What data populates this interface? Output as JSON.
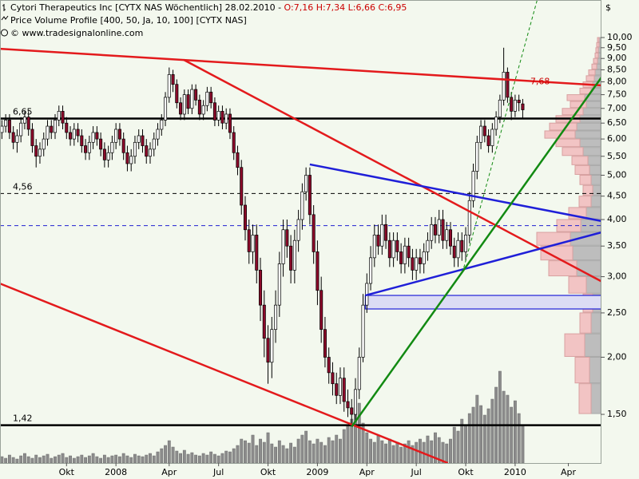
{
  "chart_data": {
    "type": "candlestick",
    "title": "Cytori Therapeutics Inc [CYTX NAS  Wöchentlich] 28.02.2010 - ",
    "subtitle": "O:7,16 H:7,34 L:6,66 C:6,95",
    "indicator": "Price Volume Profile [400, 50, Ja, 10, 100] [CYTX NAS]",
    "copyright": "© www.tradesignalonline.com",
    "currency": "$",
    "log_scale": true,
    "ylim": [
      1.174,
      12.08
    ],
    "yticks": [
      {
        "value": 1.5,
        "label": "1,50"
      },
      {
        "value": 2,
        "label": "2,00"
      },
      {
        "value": 2.5,
        "label": "2,50"
      },
      {
        "value": 3,
        "label": "3,00"
      },
      {
        "value": 3.5,
        "label": "3,50"
      },
      {
        "value": 4,
        "label": "4,00"
      },
      {
        "value": 4.5,
        "label": "4,50"
      },
      {
        "value": 5,
        "label": "5,00"
      },
      {
        "value": 5.5,
        "label": "5,50"
      },
      {
        "value": 6,
        "label": "6,00"
      },
      {
        "value": 6.5,
        "label": "6,50"
      },
      {
        "value": 7,
        "label": "7,00"
      },
      {
        "value": 7.5,
        "label": "7,50"
      },
      {
        "value": 8,
        "label": "8,00"
      },
      {
        "value": 8.5,
        "label": "8,50"
      },
      {
        "value": 9,
        "label": "9,00"
      },
      {
        "value": 9.5,
        "label": "9,50"
      },
      {
        "value": 10,
        "label": "10,00"
      }
    ],
    "categories": [
      null,
      null,
      null,
      null,
      null,
      null,
      null,
      null,
      null,
      null,
      null,
      null,
      null,
      null,
      null,
      null,
      null,
      "Okt",
      null,
      null,
      null,
      null,
      null,
      null,
      null,
      null,
      null,
      null,
      null,
      null,
      "2008",
      null,
      null,
      null,
      null,
      null,
      null,
      null,
      null,
      null,
      null,
      null,
      null,
      null,
      "Apr",
      null,
      null,
      null,
      null,
      null,
      null,
      null,
      null,
      null,
      null,
      null,
      null,
      "Jul",
      null,
      null,
      null,
      null,
      null,
      null,
      null,
      null,
      null,
      null,
      null,
      null,
      "Okt",
      null,
      null,
      null,
      null,
      null,
      null,
      null,
      null,
      null,
      null,
      null,
      null,
      "2009",
      null,
      null,
      null,
      null,
      null,
      null,
      null,
      null,
      null,
      null,
      null,
      null,
      "Apr",
      null,
      null,
      null,
      null,
      null,
      null,
      null,
      null,
      null,
      null,
      null,
      null,
      "Jul",
      null,
      null,
      null,
      null,
      null,
      null,
      null,
      null,
      null,
      null,
      null,
      null,
      "Okt",
      null,
      null,
      null,
      null,
      null,
      null,
      null,
      null,
      null,
      null,
      null,
      null,
      "2010",
      null,
      null,
      null,
      null,
      null,
      null,
      null,
      null,
      null,
      null,
      null,
      null,
      null,
      "Apr",
      null,
      null,
      null,
      null,
      null,
      null,
      null,
      null
    ],
    "open": [
      6.2,
      6.4,
      6.6,
      6.2,
      5.9,
      6.1,
      6.5,
      6.7,
      6.3,
      5.8,
      5.5,
      5.7,
      6.0,
      6.4,
      6.2,
      6.6,
      6.9,
      6.5,
      6.2,
      6.0,
      6.3,
      6.1,
      5.8,
      5.6,
      5.9,
      6.2,
      6.0,
      5.7,
      5.4,
      5.6,
      5.9,
      6.3,
      6.0,
      5.6,
      5.3,
      5.5,
      5.9,
      6.1,
      5.8,
      5.5,
      5.7,
      6.0,
      6.3,
      6.6,
      7.4,
      8.3,
      7.9,
      7.2,
      6.8,
      7.5,
      7.0,
      7.7,
      7.3,
      6.8,
      7.1,
      7.6,
      7.2,
      6.6,
      6.9,
      6.5,
      6.8,
      6.2,
      5.6,
      5.2,
      4.3,
      3.8,
      3.4,
      3.7,
      3.1,
      2.6,
      2.2,
      1.95,
      2.3,
      2.6,
      3.2,
      3.8,
      3.5,
      3.1,
      3.6,
      4.0,
      4.6,
      5.0,
      4.1,
      3.4,
      2.8,
      2.3,
      2.0,
      1.85,
      1.75,
      1.65,
      1.8,
      1.6,
      1.55,
      1.5,
      1.7,
      2.0,
      2.6,
      2.9,
      3.3,
      3.7,
      3.5,
      3.9,
      3.6,
      3.3,
      3.6,
      3.4,
      3.2,
      3.5,
      3.3,
      3.1,
      3.3,
      3.2,
      3.4,
      3.6,
      3.9,
      3.7,
      4.0,
      3.6,
      3.8,
      3.5,
      3.3,
      3.6,
      3.4,
      3.7,
      4.4,
      5.1,
      5.9,
      6.4,
      6.1,
      5.8,
      6.3,
      6.7,
      7.3,
      8.4,
      7.4,
      6.9,
      7.3,
      7.16,
      null,
      null,
      null,
      null,
      null,
      null,
      null,
      null,
      null,
      null,
      null,
      null,
      null,
      null,
      null,
      null,
      null,
      null,
      null,
      null
    ],
    "high": [
      6.6,
      6.8,
      6.8,
      6.4,
      6.3,
      6.7,
      6.9,
      6.9,
      6.5,
      6.0,
      5.9,
      6.2,
      6.6,
      6.6,
      6.8,
      7.1,
      7.1,
      6.7,
      6.4,
      6.5,
      6.5,
      6.3,
      6.0,
      6.1,
      6.4,
      6.4,
      6.2,
      5.9,
      5.8,
      6.1,
      6.5,
      6.5,
      6.2,
      5.8,
      5.7,
      6.1,
      6.3,
      6.3,
      6.0,
      5.9,
      6.2,
      6.5,
      6.8,
      7.6,
      8.6,
      8.5,
      8.1,
      7.4,
      7.7,
      7.7,
      7.9,
      7.9,
      7.5,
      7.3,
      7.8,
      7.8,
      7.4,
      7.1,
      7.1,
      7.0,
      7.0,
      6.4,
      5.8,
      5.4,
      4.5,
      4.0,
      3.9,
      3.9,
      3.3,
      2.8,
      2.35,
      2.45,
      2.8,
      3.4,
      4.0,
      4.0,
      3.7,
      3.8,
      4.2,
      4.8,
      5.2,
      5.2,
      4.3,
      3.6,
      3.0,
      2.45,
      2.1,
      1.95,
      1.85,
      1.9,
      1.9,
      1.7,
      1.62,
      1.8,
      2.1,
      2.75,
      3.05,
      3.5,
      3.9,
      3.9,
      4.1,
      4.1,
      3.75,
      3.75,
      3.75,
      3.55,
      3.65,
      3.65,
      3.45,
      3.45,
      3.45,
      3.55,
      3.75,
      4.05,
      4.05,
      4.2,
      4.2,
      3.95,
      3.95,
      3.65,
      3.75,
      3.75,
      3.85,
      4.6,
      5.3,
      6.1,
      6.6,
      6.6,
      6.3,
      6.5,
      6.9,
      7.5,
      9.5,
      8.6,
      7.6,
      7.5,
      7.5,
      7.34,
      null,
      null,
      null,
      null,
      null,
      null,
      null,
      null,
      null,
      null,
      null,
      null,
      null,
      null,
      null,
      null,
      null,
      null,
      null,
      null
    ],
    "low": [
      6.0,
      6.2,
      6.0,
      5.7,
      5.6,
      5.9,
      6.3,
      6.1,
      5.6,
      5.2,
      5.3,
      5.5,
      5.8,
      6.0,
      6.0,
      6.4,
      6.3,
      6.0,
      5.8,
      5.8,
      5.9,
      5.6,
      5.4,
      5.4,
      5.7,
      5.8,
      5.5,
      5.2,
      5.2,
      5.4,
      5.7,
      5.8,
      5.4,
      5.1,
      5.1,
      5.3,
      5.7,
      5.6,
      5.3,
      5.3,
      5.5,
      5.8,
      6.1,
      6.4,
      7.2,
      7.6,
      7.0,
      6.6,
      6.6,
      6.8,
      6.8,
      7.1,
      6.6,
      6.6,
      6.9,
      7.0,
      6.4,
      6.4,
      6.3,
      6.3,
      6.0,
      5.4,
      5.0,
      4.1,
      3.6,
      3.2,
      3.2,
      2.9,
      2.4,
      2.0,
      1.75,
      1.8,
      2.15,
      2.45,
      3.0,
      3.3,
      2.9,
      2.9,
      3.4,
      3.8,
      4.4,
      3.9,
      3.2,
      2.6,
      2.15,
      1.9,
      1.75,
      1.65,
      1.58,
      1.58,
      1.52,
      1.48,
      1.42,
      1.45,
      1.62,
      1.95,
      2.5,
      2.8,
      3.15,
      3.35,
      3.35,
      3.45,
      3.15,
      3.15,
      3.25,
      3.05,
      3.05,
      3.15,
      2.95,
      2.95,
      3.05,
      3.05,
      3.25,
      3.45,
      3.55,
      3.55,
      3.45,
      3.45,
      3.35,
      3.15,
      3.15,
      3.25,
      3.25,
      3.55,
      4.25,
      4.9,
      5.7,
      5.9,
      5.6,
      5.6,
      6.1,
      6.5,
      7.1,
      7.2,
      6.6,
      6.7,
      6.9,
      6.66,
      null,
      null,
      null,
      null,
      null,
      null,
      null,
      null,
      null,
      null,
      null,
      null,
      null,
      null,
      null,
      null,
      null,
      null,
      null,
      null
    ],
    "close": [
      6.4,
      6.6,
      6.2,
      5.9,
      6.1,
      6.5,
      6.7,
      6.3,
      5.8,
      5.5,
      5.7,
      6.0,
      6.4,
      6.2,
      6.6,
      6.9,
      6.5,
      6.2,
      6.0,
      6.3,
      6.1,
      5.8,
      5.6,
      5.9,
      6.2,
      6.0,
      5.7,
      5.4,
      5.6,
      5.9,
      6.3,
      6.0,
      5.6,
      5.3,
      5.5,
      5.9,
      6.1,
      5.8,
      5.5,
      5.7,
      6.0,
      6.3,
      6.6,
      7.4,
      8.3,
      7.9,
      7.2,
      6.8,
      7.5,
      7.0,
      7.7,
      7.3,
      6.8,
      7.1,
      7.6,
      7.2,
      6.6,
      6.9,
      6.5,
      6.8,
      6.2,
      5.6,
      5.2,
      4.3,
      3.8,
      3.4,
      3.7,
      3.1,
      2.6,
      2.2,
      1.95,
      2.3,
      2.6,
      3.2,
      3.8,
      3.5,
      3.1,
      3.6,
      4.0,
      4.6,
      5.0,
      4.1,
      3.4,
      2.8,
      2.3,
      2.0,
      1.85,
      1.75,
      1.65,
      1.8,
      1.6,
      1.55,
      1.5,
      1.7,
      2.0,
      2.6,
      2.9,
      3.3,
      3.7,
      3.5,
      3.9,
      3.6,
      3.3,
      3.6,
      3.4,
      3.2,
      3.5,
      3.3,
      3.1,
      3.3,
      3.2,
      3.4,
      3.6,
      3.9,
      3.7,
      4.0,
      3.6,
      3.8,
      3.5,
      3.3,
      3.6,
      3.4,
      3.7,
      4.4,
      5.1,
      5.9,
      6.4,
      6.1,
      5.8,
      6.3,
      6.7,
      7.3,
      8.4,
      7.4,
      6.9,
      7.3,
      7.2,
      6.95,
      null,
      null,
      null,
      null,
      null,
      null,
      null,
      null,
      null,
      null,
      null,
      null,
      null,
      null,
      null,
      null,
      null,
      null,
      null,
      null
    ],
    "volume": [
      8,
      6,
      10,
      7,
      5,
      9,
      12,
      8,
      6,
      10,
      7,
      9,
      11,
      6,
      8,
      10,
      12,
      7,
      9,
      6,
      8,
      10,
      7,
      9,
      12,
      8,
      6,
      10,
      7,
      9,
      10,
      8,
      12,
      9,
      7,
      11,
      9,
      8,
      10,
      12,
      9,
      14,
      18,
      22,
      28,
      20,
      15,
      12,
      16,
      11,
      13,
      10,
      9,
      12,
      10,
      14,
      11,
      9,
      12,
      15,
      14,
      18,
      22,
      30,
      28,
      25,
      35,
      22,
      30,
      26,
      38,
      24,
      20,
      28,
      22,
      18,
      25,
      20,
      30,
      35,
      40,
      28,
      24,
      30,
      26,
      22,
      32,
      28,
      35,
      30,
      42,
      48,
      55,
      62,
      75,
      50,
      38,
      30,
      26,
      34,
      28,
      24,
      30,
      22,
      26,
      20,
      24,
      28,
      22,
      26,
      30,
      26,
      34,
      28,
      38,
      32,
      26,
      24,
      30,
      45,
      40,
      55,
      48,
      62,
      70,
      85,
      72,
      60,
      68,
      80,
      95,
      115,
      90,
      85,
      70,
      78,
      62,
      48,
      null,
      null,
      null,
      null,
      null,
      null,
      null,
      null,
      null,
      null,
      null,
      null,
      null,
      null,
      null,
      null,
      null,
      null,
      null,
      null
    ],
    "up_color": "#ffffff",
    "down_color": "#8b0a2a",
    "volume_color": "#8c8c8c",
    "volume_profile": {
      "up_color": "#f2c4c4",
      "down_color": "#bdbdbd",
      "bins": [
        1.5,
        1.75,
        2.0,
        2.25,
        2.5,
        2.75,
        3.0,
        3.25,
        3.5,
        3.75,
        4.0,
        4.25,
        4.5,
        4.75,
        5.0,
        5.25,
        5.5,
        5.75,
        6.0,
        6.25,
        6.5,
        6.75,
        7.0,
        7.25,
        7.5,
        7.75,
        8.0,
        8.25,
        8.5,
        8.75,
        9.0,
        9.25,
        9.5,
        9.75,
        10.0
      ],
      "up": [
        15,
        18,
        25,
        14,
        12,
        22,
        35,
        40,
        42,
        30,
        22,
        15,
        12,
        14,
        18,
        20,
        26,
        30,
        38,
        34,
        30,
        26,
        20,
        22,
        14,
        12,
        10,
        8,
        6,
        5,
        4,
        3,
        3,
        2
      ],
      "down": [
        12,
        14,
        20,
        12,
        10,
        18,
        30,
        35,
        38,
        25,
        18,
        12,
        10,
        12,
        14,
        16,
        22,
        26,
        32,
        30,
        26,
        22,
        18,
        20,
        12,
        10,
        8,
        7,
        5,
        4,
        3,
        3,
        2,
        2
      ]
    },
    "hlines": [
      {
        "value": 6.65,
        "label": "6,65",
        "color": "#000000",
        "style": "solid"
      },
      {
        "value": 4.56,
        "label": "4,56",
        "color": "#000000",
        "style": "dashed"
      },
      {
        "value": 1.42,
        "label": "1,42",
        "color": "#000000",
        "style": "solid"
      },
      {
        "value": 3.88,
        "color": "#2020d0",
        "style": "dashed"
      }
    ],
    "trendlines": [
      {
        "color": "#e31a1c",
        "style": "solid",
        "x": [
          -0.6,
          157.7
        ],
        "y": [
          9.45,
          7.86
        ]
      },
      {
        "color": "#e31a1c",
        "style": "solid",
        "x": [
          47.8,
          157.7
        ],
        "y": [
          8.94,
          2.93
        ]
      },
      {
        "color": "#e31a1c",
        "style": "solid",
        "x": [
          -0.6,
          117.3
        ],
        "y": [
          2.9,
          1.174
        ]
      },
      {
        "color": "#1f1fd8",
        "style": "solid",
        "x": [
          81,
          157.7
        ],
        "y": [
          5.28,
          3.97
        ]
      },
      {
        "color": "#1f1fd8",
        "style": "solid",
        "x": [
          95.6,
          157.7
        ],
        "y": [
          2.73,
          3.75
        ]
      },
      {
        "color": "#128a12",
        "style": "solid",
        "x": [
          92,
          157.7
        ],
        "y": [
          1.41,
          8.18
        ]
      },
      {
        "color": "#128a12",
        "style": "dashed",
        "x": [
          121.5,
          140.8
        ],
        "y": [
          3.14,
          12.08
        ]
      }
    ],
    "zones": [
      {
        "color": "#1f1fd8",
        "fill": "#dcdcf4",
        "x": [
          95.6,
          157.7
        ],
        "y": [
          2.55,
          2.73
        ]
      }
    ],
    "annotations": [
      {
        "value": 7.68,
        "label": "7,68",
        "x": 139,
        "color": "#cc0000"
      }
    ]
  }
}
